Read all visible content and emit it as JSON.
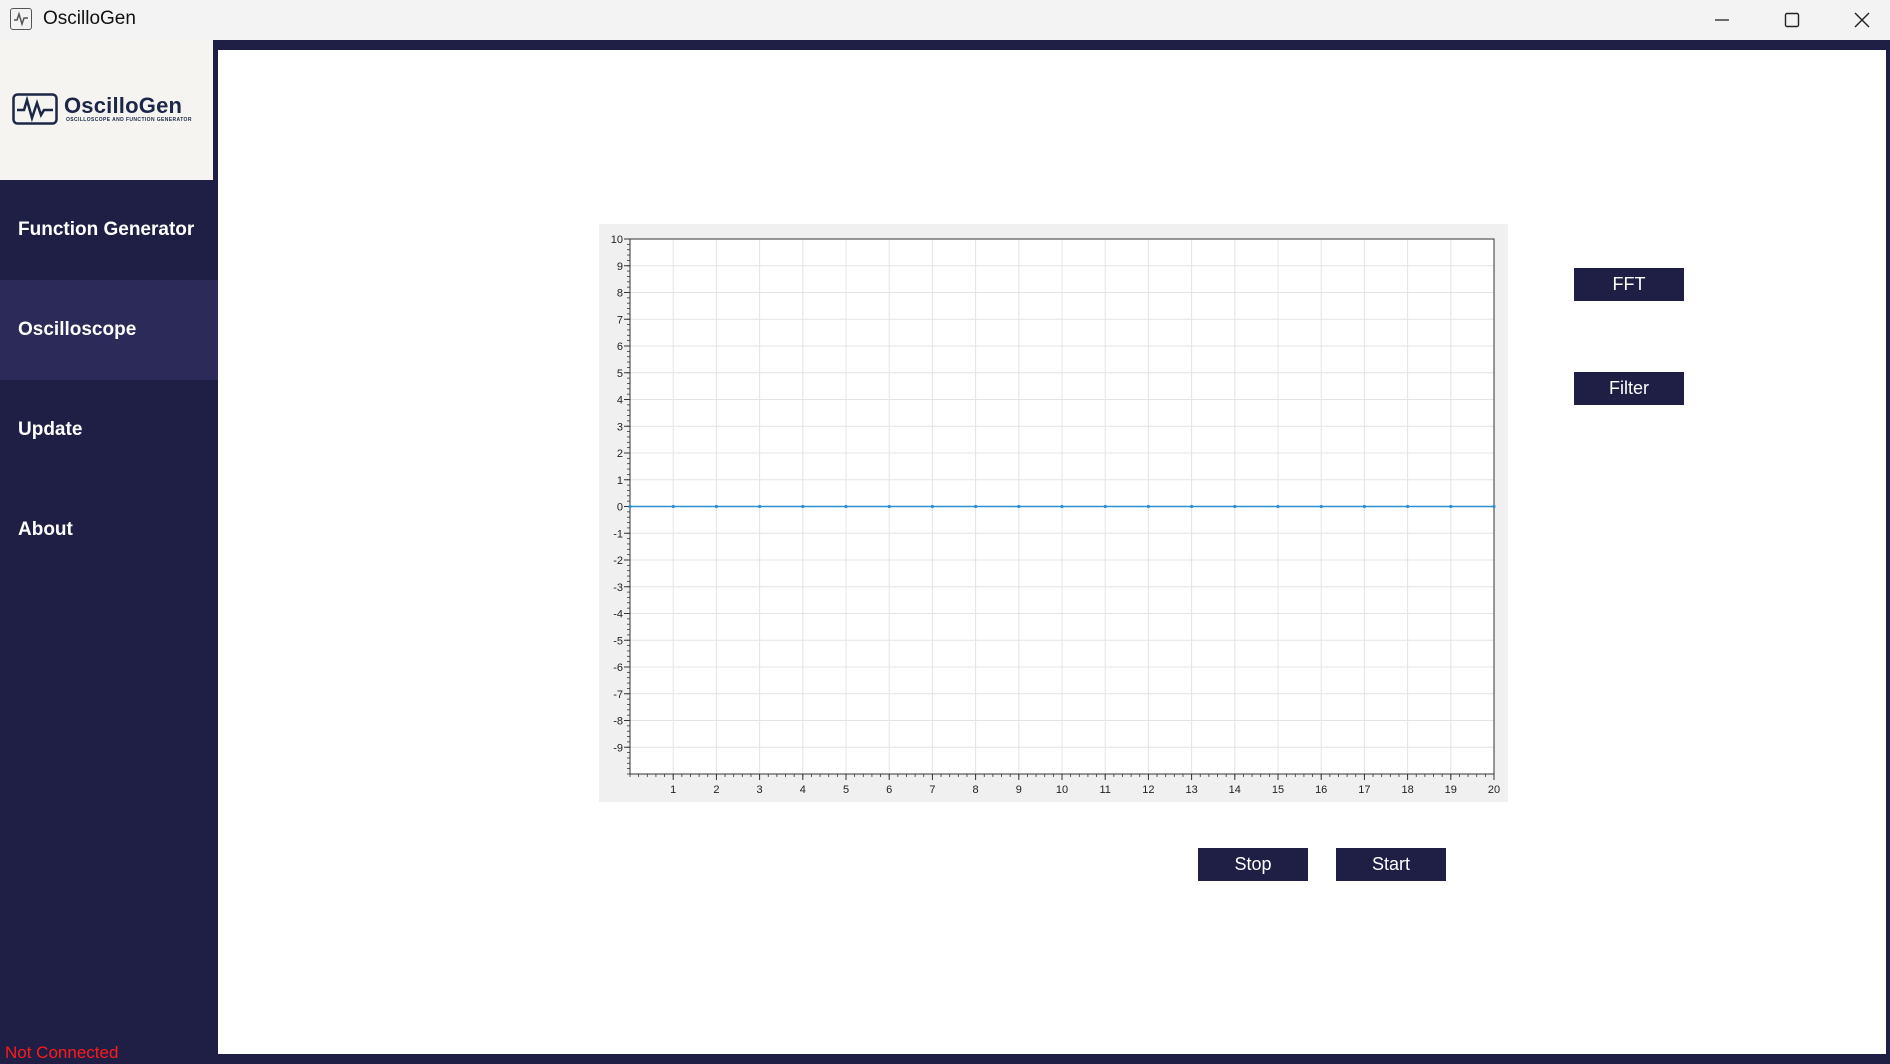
{
  "window": {
    "title": "OscilloGen",
    "controls": [
      "minimize",
      "maximize",
      "close"
    ]
  },
  "logo": {
    "name": "OscilloGen",
    "tagline": "OSCILLOSCOPE AND FUNCTION GENERATOR"
  },
  "sidebar": {
    "items": [
      {
        "label": "Function Generator",
        "active": false
      },
      {
        "label": "Oscilloscope",
        "active": true
      },
      {
        "label": "Update",
        "active": false
      },
      {
        "label": "About",
        "active": false
      }
    ],
    "status": "Not Connected"
  },
  "buttons": {
    "fft": "FFT",
    "filter": "Filter",
    "stop": "Stop",
    "start": "Start"
  },
  "colors": {
    "sidebar_bg": "#1f1f45",
    "active_item_bg": "#2b2a58",
    "button_bg": "#1f1f45",
    "status_text": "#ff1a1a",
    "trace": "#2f8fd0"
  },
  "chart_data": {
    "type": "line",
    "title": "",
    "xlabel": "",
    "ylabel": "",
    "xlim": [
      0,
      20
    ],
    "ylim": [
      -10,
      10
    ],
    "x_ticks": [
      1,
      2,
      3,
      4,
      5,
      6,
      7,
      8,
      9,
      10,
      11,
      12,
      13,
      14,
      15,
      16,
      17,
      18,
      19,
      20
    ],
    "y_ticks": [
      -9,
      -8,
      -7,
      -6,
      -5,
      -4,
      -3,
      -2,
      -1,
      0,
      1,
      2,
      3,
      4,
      5,
      6,
      7,
      8,
      9,
      10
    ],
    "grid": true,
    "legend": "none",
    "series": [
      {
        "x": [
          0,
          1,
          2,
          3,
          4,
          5,
          6,
          7,
          8,
          9,
          10,
          11,
          12,
          13,
          14,
          15,
          16,
          17,
          18,
          19,
          20
        ],
        "values": [
          0,
          0,
          0,
          0,
          0,
          0,
          0,
          0,
          0,
          0,
          0,
          0,
          0,
          0,
          0,
          0,
          0,
          0,
          0,
          0,
          0
        ]
      }
    ]
  }
}
